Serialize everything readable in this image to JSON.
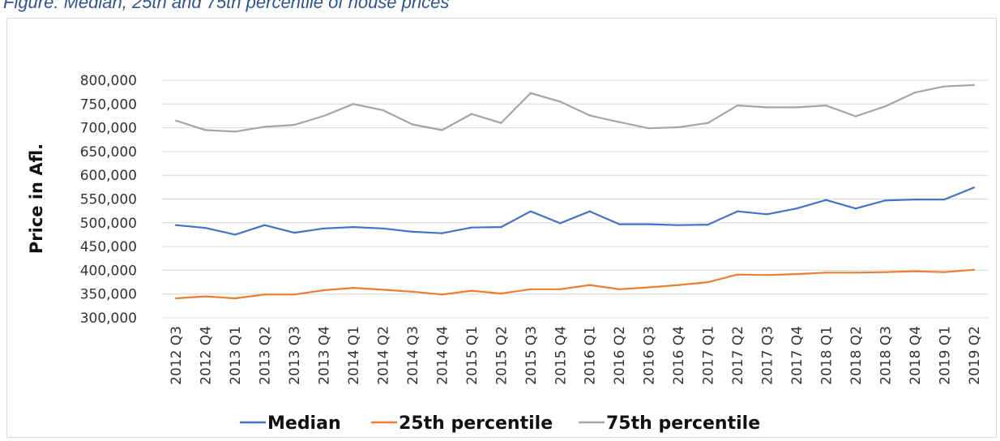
{
  "header_text": "Figure: Median, 25th and 75th percentile of house prices",
  "chart_data": {
    "type": "line",
    "title": "",
    "xlabel": "",
    "ylabel": "Price in Afl.",
    "ylim": [
      300000,
      800000
    ],
    "y_ticks": [
      "300,000",
      "350,000",
      "400,000",
      "450,000",
      "500,000",
      "550,000",
      "600,000",
      "650,000",
      "700,000",
      "750,000",
      "800,000"
    ],
    "grid": true,
    "legend_position": "bottom",
    "categories": [
      "2012 Q3",
      "2012 Q4",
      "2013 Q1",
      "2013 Q2",
      "2013 Q3",
      "2013 Q4",
      "2014 Q1",
      "2014 Q2",
      "2014 Q3",
      "2014 Q4",
      "2015 Q1",
      "2015 Q2",
      "2015 Q3",
      "2015 Q4",
      "2016 Q1",
      "2016 Q2",
      "2016 Q3",
      "2016 Q4",
      "2017 Q1",
      "2017 Q2",
      "2017 Q3",
      "2017 Q4",
      "2018 Q1",
      "2018 Q2",
      "2018 Q3",
      "2018 Q4",
      "2019 Q1",
      "2019 Q2"
    ],
    "series": [
      {
        "name": "Median",
        "color": "#4472c4",
        "values": [
          495000,
          489000,
          475000,
          495000,
          479000,
          488000,
          491000,
          488000,
          481000,
          478000,
          490000,
          491000,
          524000,
          499000,
          524000,
          497000,
          497000,
          495000,
          496000,
          524000,
          518000,
          530000,
          548000,
          530000,
          547000,
          549000,
          549000,
          574000
        ]
      },
      {
        "name": "25th percentile",
        "color": "#ed7d31",
        "values": [
          341000,
          345000,
          341000,
          349000,
          349000,
          358000,
          363000,
          359000,
          355000,
          349000,
          357000,
          351000,
          360000,
          360000,
          369000,
          360000,
          364000,
          369000,
          375000,
          391000,
          390000,
          392000,
          395000,
          395000,
          396000,
          398000,
          396000,
          401000
        ]
      },
      {
        "name": "75th percentile",
        "color": "#a5a5a5",
        "values": [
          715000,
          695000,
          692000,
          702000,
          706000,
          725000,
          750000,
          737000,
          707000,
          695000,
          729000,
          710000,
          773000,
          755000,
          726000,
          712000,
          699000,
          701000,
          710000,
          747000,
          743000,
          743000,
          747000,
          724000,
          745000,
          774000,
          787000,
          790000
        ]
      }
    ]
  }
}
